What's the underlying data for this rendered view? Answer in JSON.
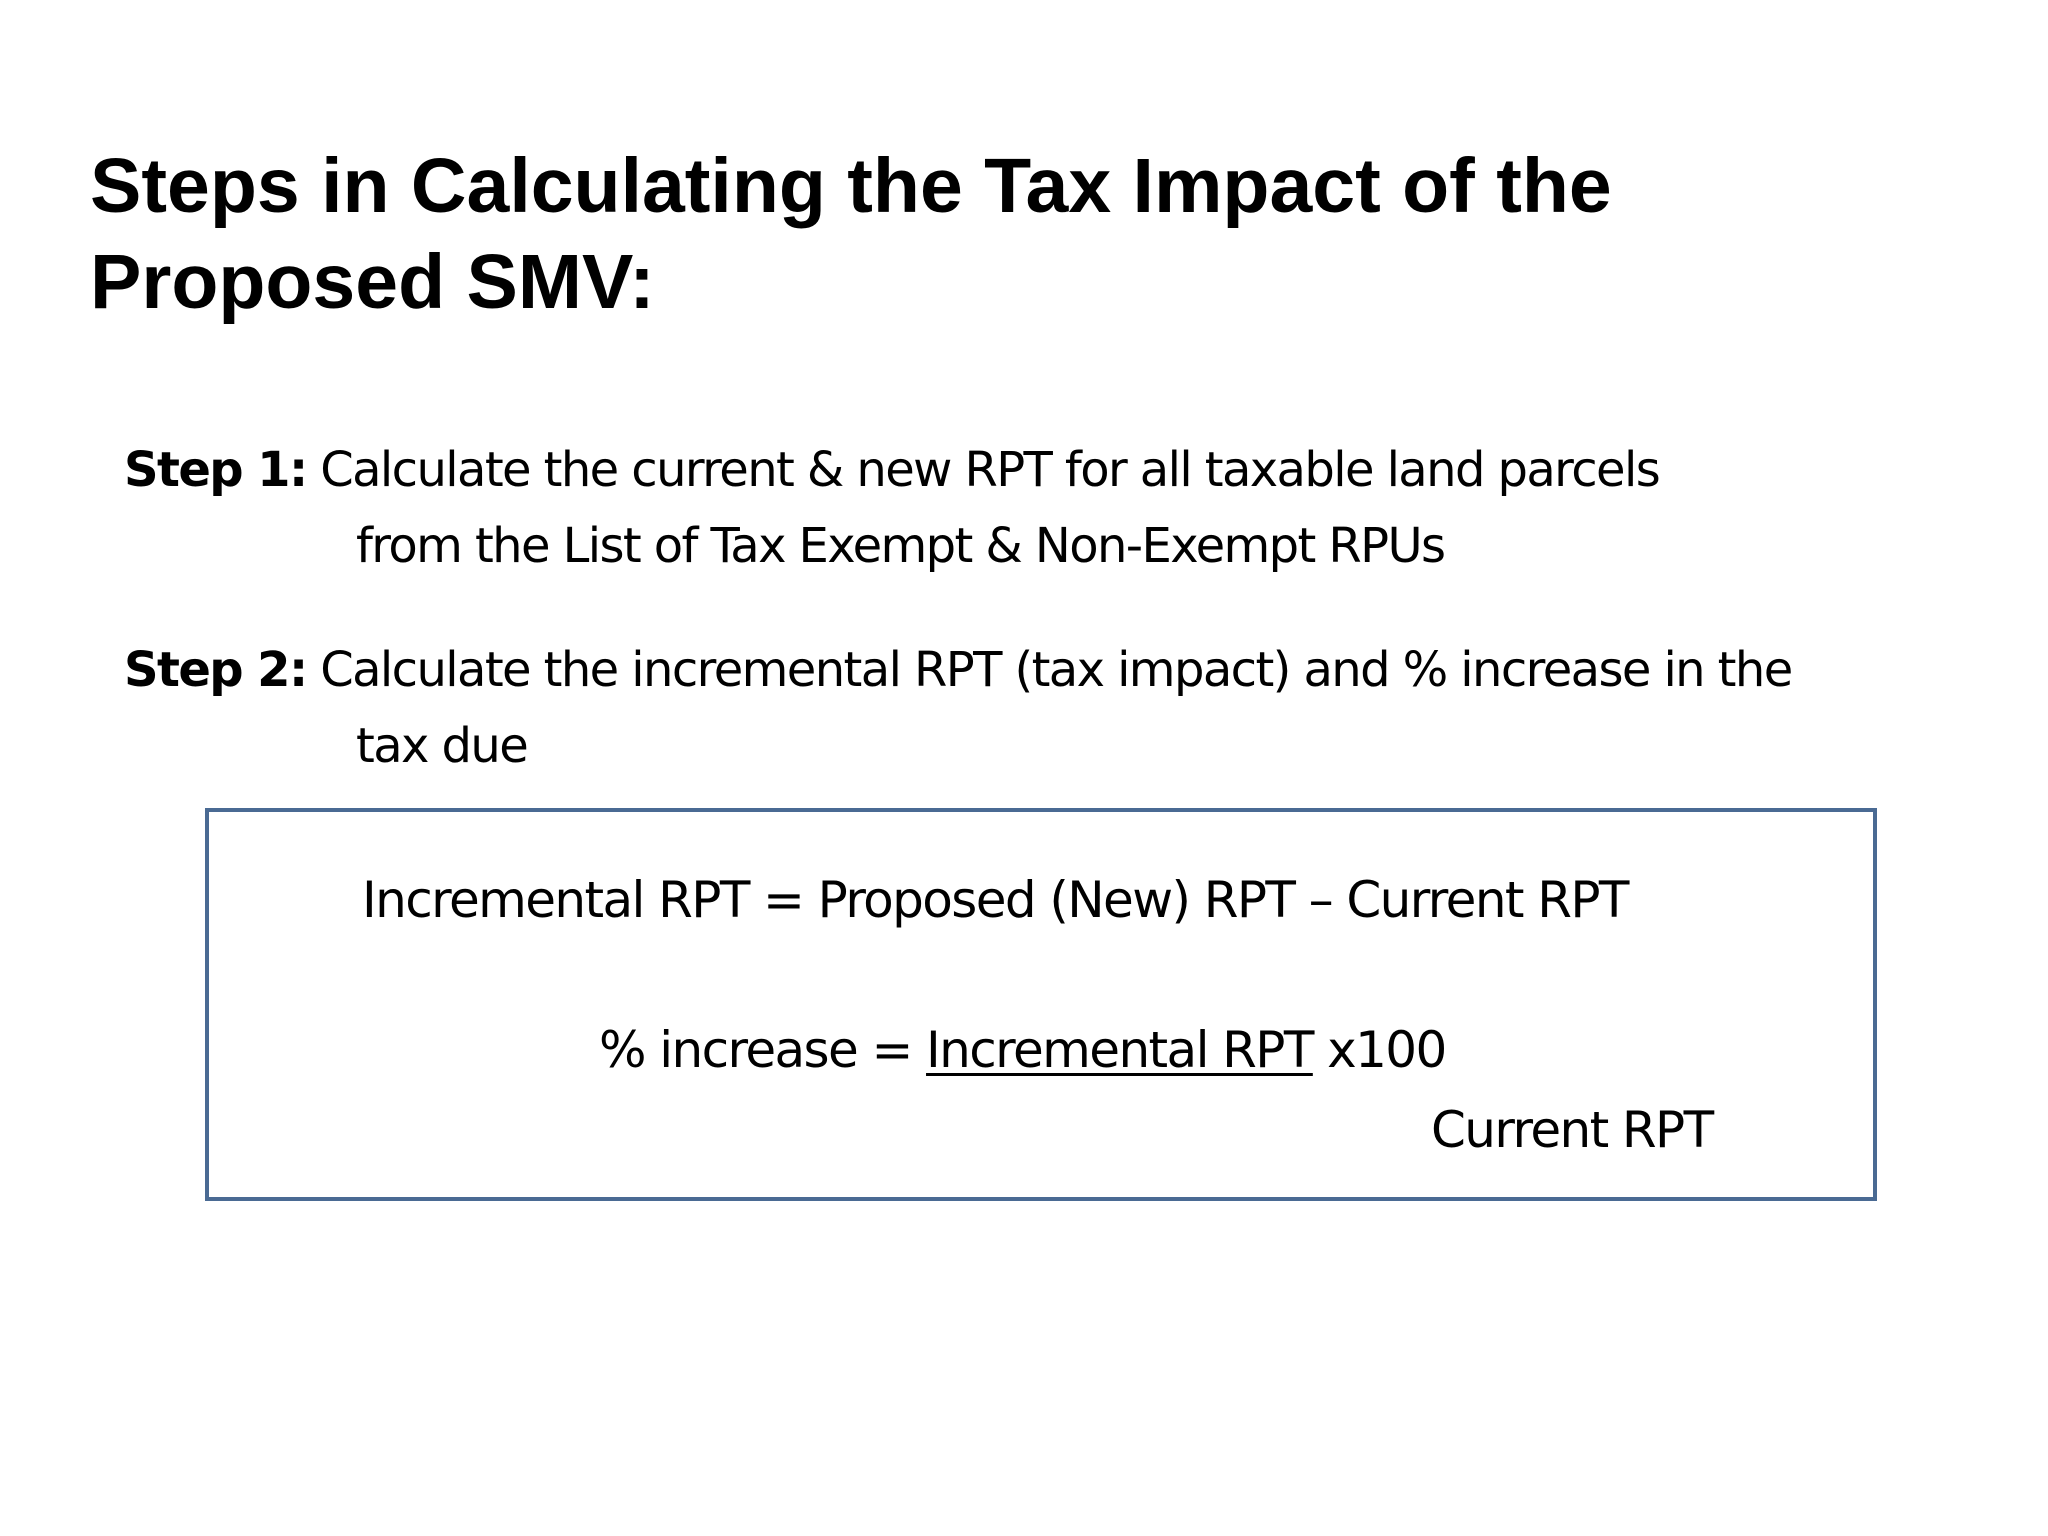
{
  "slide": {
    "title_line1": "Steps in Calculating the Tax Impact of the",
    "title_line2": "Proposed SMV:",
    "steps": [
      {
        "label": "Step 1:",
        "text_line1": " Calculate the current & new RPT for all taxable land parcels",
        "text_line2": "from the List of Tax Exempt & Non-Exempt RPUs"
      },
      {
        "label": "Step 2:",
        "text_line1": " Calculate the incremental RPT (tax impact) and % increase in the",
        "text_line2": "tax due"
      }
    ],
    "formula_box": {
      "incremental_formula": "Incremental RPT = Proposed (New) RPT – Current RPT",
      "percent_lhs": "% increase = ",
      "percent_numerator": "Incremental RPT",
      "percent_multiplier": " x100",
      "percent_denominator": "Current RPT",
      "border_color": "#4a6a93"
    }
  }
}
